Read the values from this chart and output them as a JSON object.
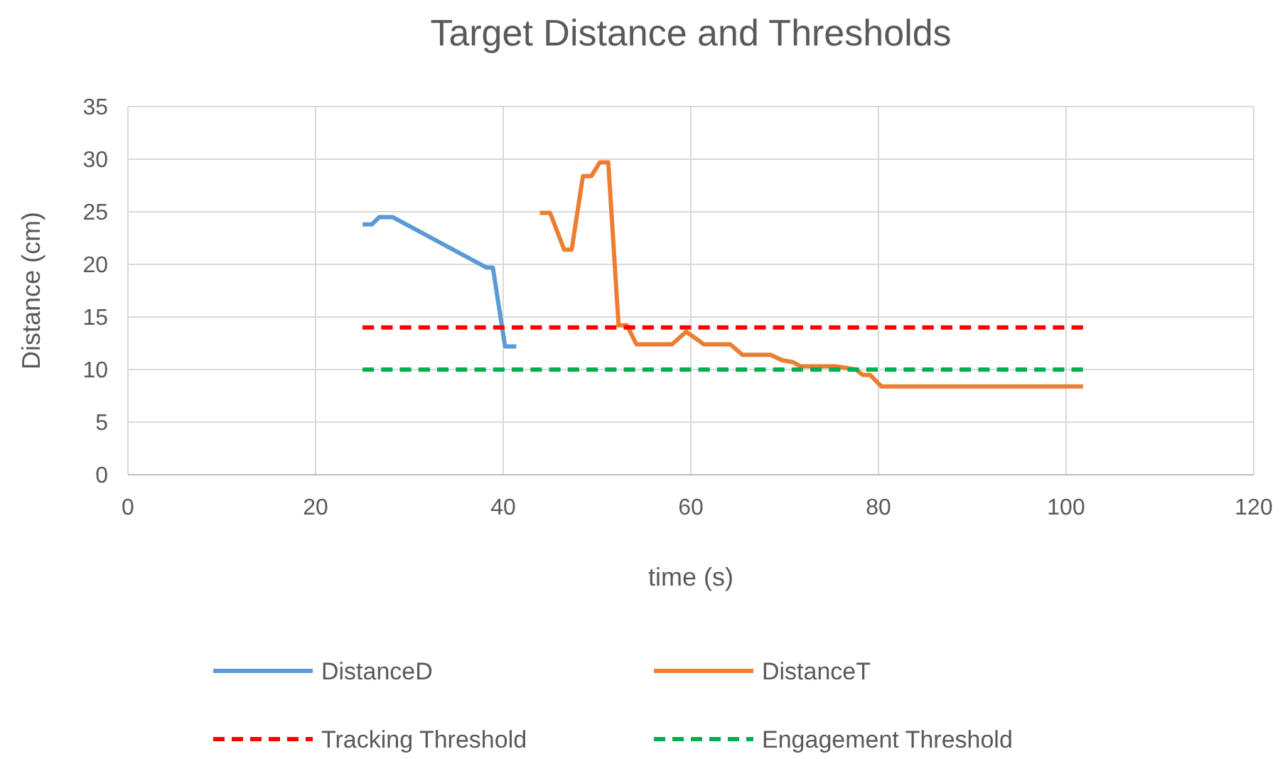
{
  "chart_data": {
    "type": "line",
    "title": "Target Distance and Thresholds",
    "xlabel": "time (s)",
    "ylabel": "Distance (cm)",
    "xlim": [
      0,
      120
    ],
    "xticks": [
      0,
      20,
      40,
      60,
      80,
      100,
      120
    ],
    "ylim": [
      0,
      35
    ],
    "yticks": [
      0,
      5,
      10,
      15,
      20,
      25,
      30,
      35
    ],
    "grid": true,
    "legend": "bottom",
    "marker": "none",
    "series": [
      {
        "name": "DistanceD",
        "color": "#5b9bd5",
        "line_style": "solid",
        "x": [
          25,
          26,
          26.8,
          28.2,
          38.2,
          38.9,
          40.2,
          41.4
        ],
        "values": [
          23.8,
          23.8,
          24.5,
          24.5,
          19.7,
          19.7,
          12.2,
          12.2
        ]
      },
      {
        "name": "DistanceT",
        "color": "#ed7d31",
        "line_style": "solid",
        "x": [
          43.9,
          45,
          46.5,
          47.3,
          48.5,
          49.4,
          50.3,
          51.2,
          52.3,
          53.2,
          54.2,
          58,
          59.5,
          61.4,
          64.2,
          65.5,
          68.5,
          69.7,
          70.9,
          71.7,
          75.5,
          77.6,
          78.3,
          79.1,
          80.3,
          101.8
        ],
        "values": [
          24.9,
          24.9,
          21.4,
          21.4,
          28.4,
          28.4,
          29.7,
          29.7,
          14.2,
          14.2,
          12.4,
          12.4,
          13.6,
          12.4,
          12.4,
          11.4,
          11.4,
          10.9,
          10.7,
          10.3,
          10.3,
          10,
          9.5,
          9.5,
          8.4,
          8.4
        ]
      },
      {
        "name": "Tracking Threshold",
        "color": "#ff0000",
        "line_style": "dashed",
        "x": [
          25,
          101.8
        ],
        "values": [
          14,
          14
        ]
      },
      {
        "name": "Engagement Threshold",
        "color": "#00b050",
        "line_style": "dashed",
        "x": [
          25,
          101.8
        ],
        "values": [
          10,
          10
        ]
      }
    ]
  }
}
